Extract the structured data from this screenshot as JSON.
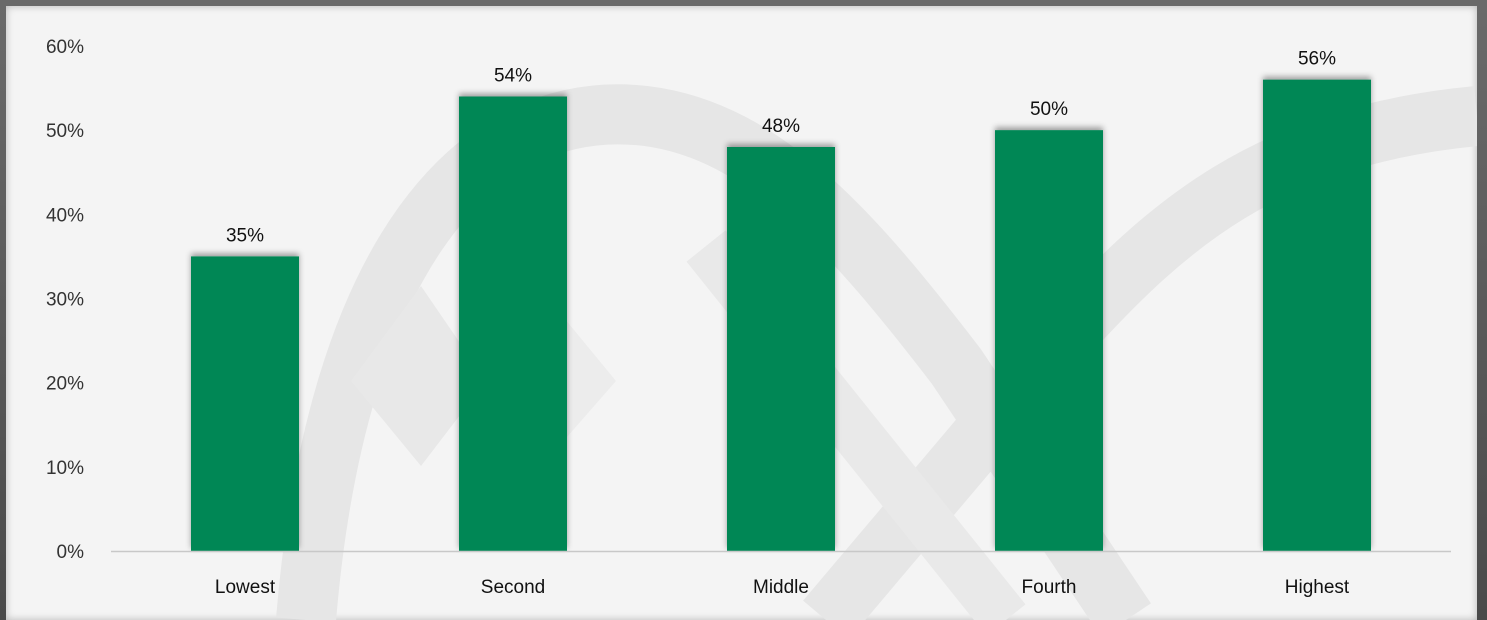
{
  "chart_data": {
    "type": "bar",
    "categories": [
      "Lowest",
      "Second",
      "Middle",
      "Fourth",
      "Highest"
    ],
    "values": [
      35,
      54,
      48,
      50,
      56
    ],
    "value_labels": [
      "35%",
      "54%",
      "48%",
      "50%",
      "56%"
    ],
    "ylim": [
      0,
      60
    ],
    "yticks": [
      0,
      10,
      20,
      30,
      40,
      50,
      60
    ],
    "ytick_labels": [
      "0%",
      "10%",
      "20%",
      "30%",
      "40%",
      "50%",
      "60%"
    ],
    "grid": false,
    "legend": "none",
    "title": "",
    "xlabel": "",
    "ylabel": ""
  },
  "colors": {
    "bar": "#008754",
    "background": "#f4f4f4",
    "axis_line": "#c8c8c8",
    "watermark": "#e4e4e4"
  }
}
